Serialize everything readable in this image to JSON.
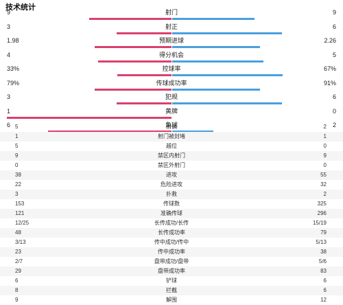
{
  "title": "技术统计",
  "colors": {
    "home": "#d9416e",
    "away": "#4a9fe0"
  },
  "bar_stats": [
    {
      "label": "射门",
      "left": "9",
      "right": "9",
      "left_share": 0.5,
      "right_share": 0.5
    },
    {
      "label": "射正",
      "left": "3",
      "right": "6",
      "left_share": 0.333,
      "right_share": 0.667
    },
    {
      "label": "预期进球",
      "left": "1.98",
      "right": "2.26",
      "left_share": 0.467,
      "right_share": 0.533
    },
    {
      "label": "得分机会",
      "left": "4",
      "right": "5",
      "left_share": 0.444,
      "right_share": 0.556
    },
    {
      "label": "控球率",
      "left": "33%",
      "right": "67%",
      "left_share": 0.33,
      "right_share": 0.67
    },
    {
      "label": "传球成功率",
      "left": "79%",
      "right": "91%",
      "left_share": 0.465,
      "right_share": 0.535
    },
    {
      "label": "犯规",
      "left": "3",
      "right": "6",
      "left_share": 0.333,
      "right_share": 0.667
    },
    {
      "label": "黄牌",
      "left": "1",
      "right": "0",
      "left_share": 1.0,
      "right_share": 0.0
    },
    {
      "label": "角球",
      "left": "6",
      "right": "2",
      "left_share": 0.75,
      "right_share": 0.25
    }
  ],
  "table_stats": [
    {
      "label": "射偏",
      "left": "5",
      "right": "2"
    },
    {
      "label": "射门被封堵",
      "left": "1",
      "right": "1"
    },
    {
      "label": "越位",
      "left": "5",
      "right": "0"
    },
    {
      "label": "禁区内射门",
      "left": "9",
      "right": "9"
    },
    {
      "label": "禁区外射门",
      "left": "0",
      "right": "0"
    },
    {
      "label": "进攻",
      "left": "38",
      "right": "55"
    },
    {
      "label": "危险进攻",
      "left": "22",
      "right": "32"
    },
    {
      "label": "扑救",
      "left": "3",
      "right": "2"
    },
    {
      "label": "传球数",
      "left": "153",
      "right": "325"
    },
    {
      "label": "准确传球",
      "left": "121",
      "right": "296"
    },
    {
      "label": "长传成功/长传",
      "left": "12/25",
      "right": "15/19"
    },
    {
      "label": "长传成功率",
      "left": "48",
      "right": "79"
    },
    {
      "label": "传中成功/传中",
      "left": "3/13",
      "right": "5/13"
    },
    {
      "label": "传中成功率",
      "left": "23",
      "right": "38"
    },
    {
      "label": "盘带成功/盘带",
      "left": "2/7",
      "right": "5/6"
    },
    {
      "label": "盘带成功率",
      "left": "29",
      "right": "83"
    },
    {
      "label": "铲球",
      "left": "6",
      "right": "6"
    },
    {
      "label": "拦截",
      "left": "8",
      "right": "6"
    },
    {
      "label": "解围",
      "left": "9",
      "right": "12"
    }
  ]
}
